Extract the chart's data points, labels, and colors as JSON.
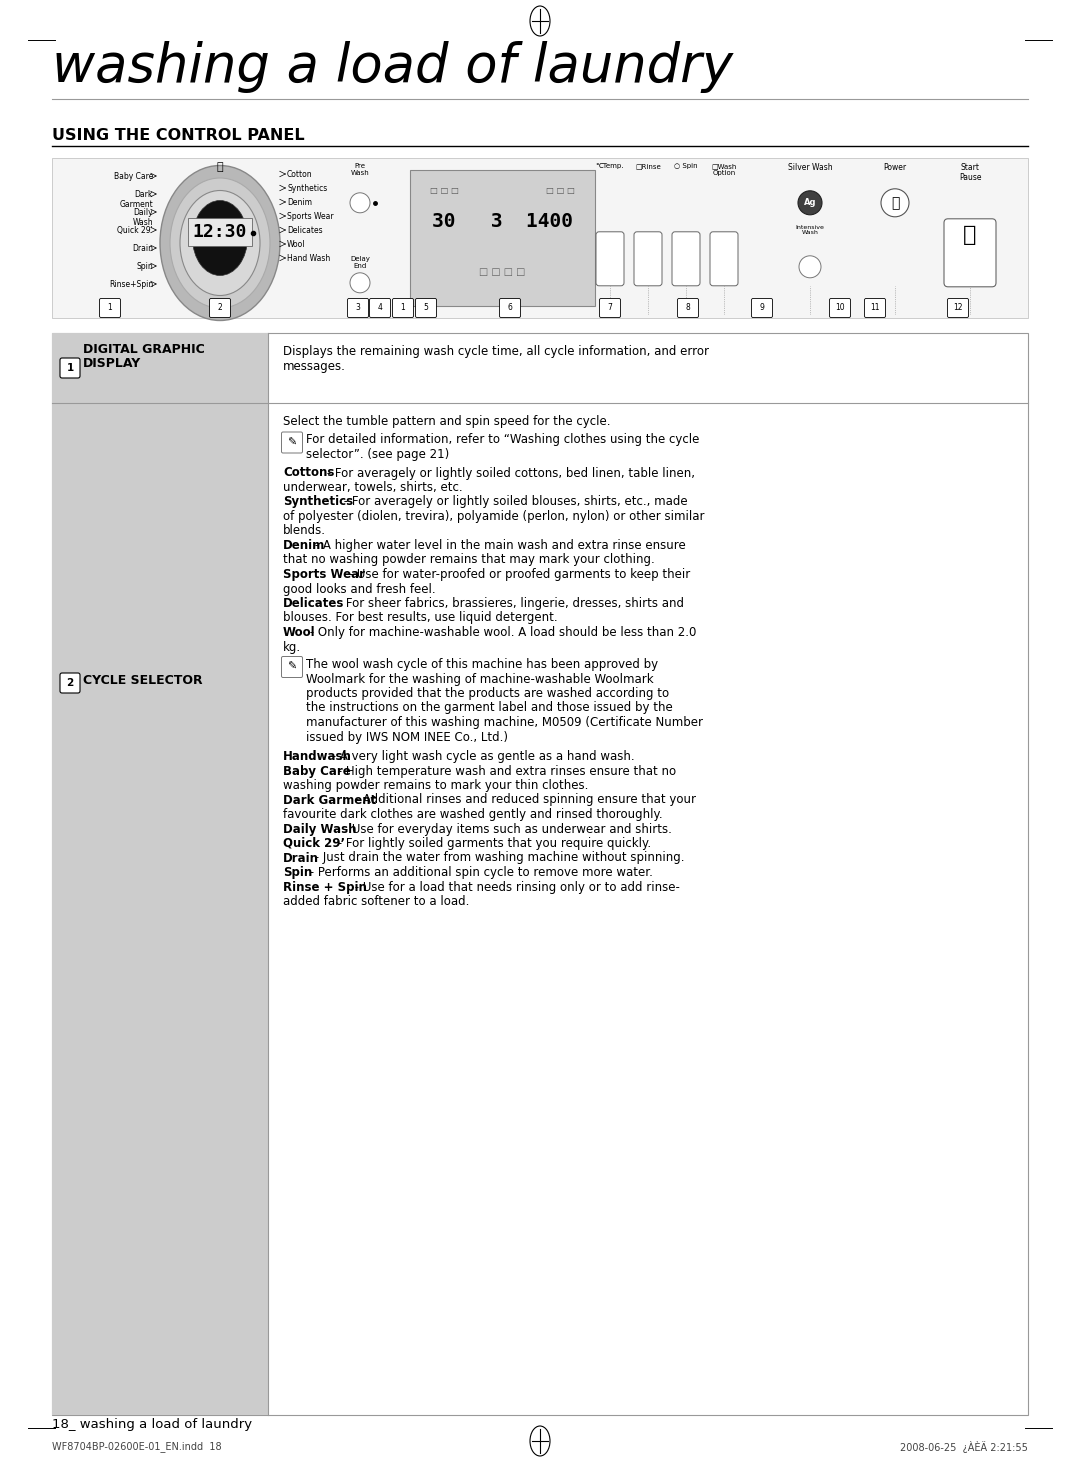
{
  "bg_color": "#ffffff",
  "page_title": "washing a load of laundry",
  "section_header": "USING THE CONTROL PANEL",
  "footer_left": "18_ washing a load of laundry",
  "footer_file": "WF8704BP-02600E-01_EN.indd  18",
  "footer_date": "2008-06-25  ¿ÀÈÄ 2:21:55",
  "row1_title_line1": "DIGITAL GRAPHIC",
  "row1_title_line2": "DISPLAY",
  "row1_content": "Displays the remaining wash cycle time, all cycle information, and error\nmessages.",
  "row2_title": "CYCLE SELECTOR",
  "cycle_select_intro": "Select the tumble pattern and spin speed for the cycle.",
  "note1": "For detailed information, refer to “Washing clothes using the cycle\nselector”. (see page 21)",
  "paragraphs_before_note2": [
    {
      "bold": "Cottons",
      "rest": " - For averagely or lightly soiled cottons, bed linen, table linen,\nunderwear, towels, shirts, etc."
    },
    {
      "bold": "Synthetics",
      "rest": " - For averagely or lightly soiled blouses, shirts, etc., made\nof polyester (diolen, trevira), polyamide (perlon, nylon) or other similar\nblends."
    },
    {
      "bold": "Denim",
      "rest": " - A higher water level in the main wash and extra rinse ensure\nthat no washing powder remains that may mark your clothing."
    },
    {
      "bold": "Sports Wear",
      "rest": " - Use for water-proofed or proofed garments to keep their\ngood looks and fresh feel."
    },
    {
      "bold": "Delicates",
      "rest": " - For sheer fabrics, brassieres, lingerie, dresses, shirts and\nblouses. For best results, use liquid detergent."
    },
    {
      "bold": "Wool",
      "rest": " - Only for machine-washable wool. A load should be less than 2.0\nkg."
    }
  ],
  "note2": "The wool wash cycle of this machine has been approved by\nWoolmark for the washing of machine-washable Woolmark\nproducts provided that the products are washed according to\nthe instructions on the garment label and those issued by the\nmanufacturer of this washing machine, M0509 (Certificate Number\nissued by IWS NOM INEE Co., Ltd.)",
  "paragraphs_after_note2": [
    {
      "bold": "Handwash",
      "rest": " - A very light wash cycle as gentle as a hand wash."
    },
    {
      "bold": "Baby Care",
      "rest": " - High temperature wash and extra rinses ensure that no\nwashing powder remains to mark your thin clothes."
    },
    {
      "bold": "Dark Garment",
      "rest": " - Additional rinses and reduced spinning ensure that your\nfavourite dark clothes are washed gently and rinsed thoroughly."
    },
    {
      "bold": "Daily Wash",
      "rest": " - Use for everyday items such as underwear and shirts."
    },
    {
      "bold": "Quick 29’",
      "rest": " - For lightly soiled garments that you require quickly."
    },
    {
      "bold": "Drain",
      "rest": " - Just drain the water from washing machine without spinning."
    },
    {
      "bold": "Spin",
      "rest": " - Performs an additional spin cycle to remove more water."
    },
    {
      "bold": "Rinse + Spin",
      "rest": " - Use for a load that needs rinsing only or to add rinse-\nadded fabric softener to a load."
    }
  ],
  "left_cycle_labels": [
    "Baby Care",
    "Dark\nGarment",
    "Daily\nWash",
    "Quick 29'",
    "Drain",
    "Spin",
    "Rinse+Spin"
  ],
  "right_cycle_labels": [
    "Cotton",
    "Synthetics",
    "Denim",
    "Sports Wear",
    "Delicates",
    "Wool",
    "Hand Wash"
  ],
  "panel_num_labels": [
    "1",
    "2",
    "3",
    "4",
    "1",
    "5",
    "6",
    "7",
    "8",
    "9",
    "10",
    "11",
    "12"
  ],
  "col1_bg": "#cccccc",
  "table_border": "#999999",
  "badge_border": "#000000"
}
